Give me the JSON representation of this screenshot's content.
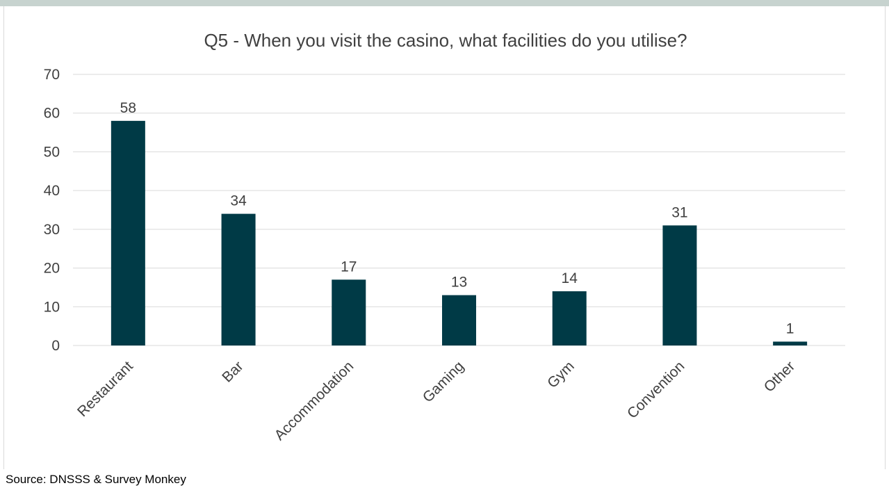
{
  "chart_data": {
    "type": "bar",
    "title": "Q5 - When you visit the casino, what facilities do you utilise?",
    "categories": [
      "Restaurant",
      "Bar",
      "Accommodation",
      "Gaming",
      "Gym",
      "Convention",
      "Other"
    ],
    "values": [
      58,
      34,
      17,
      13,
      14,
      31,
      1
    ],
    "ylim": [
      0,
      70
    ],
    "yticks": [
      0,
      10,
      20,
      30,
      40,
      50,
      60,
      70
    ],
    "xlabel": "",
    "ylabel": "",
    "grid": true,
    "legend": "none",
    "bar_color": "#003a46",
    "x_tick_rotation": "-45deg"
  },
  "source": "Source: DNSSS & Survey Monkey"
}
